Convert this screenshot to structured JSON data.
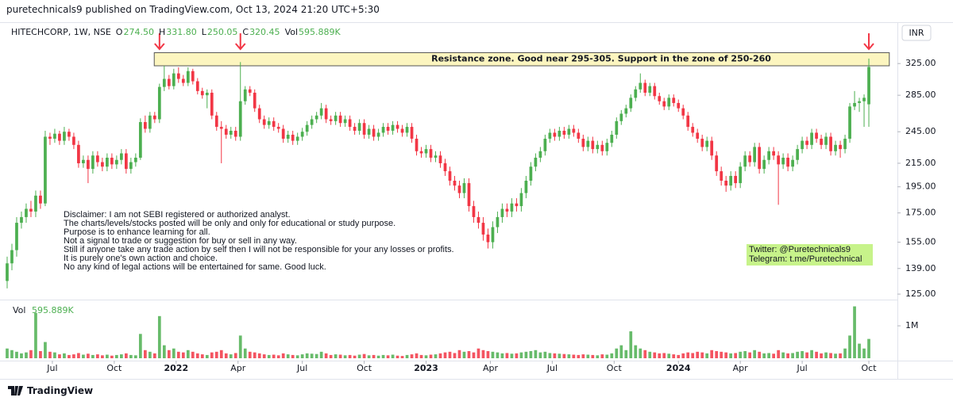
{
  "header": "puretechnicals9 published on TradingView.com, Oct 13, 2024 21:20 UTC+5:30",
  "footer": "TradingView",
  "chart_data": {
    "type": "candlestick",
    "title": "HITECHCORP, 1W, NSE",
    "ohlc_legend": [
      {
        "key": "O",
        "text": "274.50"
      },
      {
        "key": "H",
        "text": "331.80"
      },
      {
        "key": "L",
        "text": "250.05"
      },
      {
        "key": "C",
        "text": "320.45"
      }
    ],
    "currency": "INR",
    "log_scale": true,
    "up_color": "#4caf50",
    "down_color": "#f23645",
    "xlim": [
      -1.5,
      187
    ],
    "xticks": [
      {
        "value": 9.5,
        "label": "Jul"
      },
      {
        "value": 22.5,
        "label": "Oct"
      },
      {
        "value": 35.5,
        "label": "2022"
      },
      {
        "value": 48.5,
        "label": "Apr"
      },
      {
        "value": 62,
        "label": "Jul"
      },
      {
        "value": 75,
        "label": "Oct"
      },
      {
        "value": 88,
        "label": "2023"
      },
      {
        "value": 101.5,
        "label": "Apr"
      },
      {
        "value": 114.5,
        "label": "Jul"
      },
      {
        "value": 127.5,
        "label": "Oct"
      },
      {
        "value": 141,
        "label": "2024"
      },
      {
        "value": 154,
        "label": "Apr"
      },
      {
        "value": 167,
        "label": "Jul"
      },
      {
        "value": 181,
        "label": "Oct"
      }
    ],
    "ylim": [
      123,
      377
    ],
    "yticks": [
      {
        "value": 125,
        "label": "125.00"
      },
      {
        "value": 139,
        "label": "139.00"
      },
      {
        "value": 155,
        "label": "155.00"
      },
      {
        "value": 175,
        "label": "175.00"
      },
      {
        "value": 195,
        "label": "195.00"
      },
      {
        "value": 215,
        "label": "215.00"
      },
      {
        "value": 245,
        "label": "245.00"
      },
      {
        "value": 285,
        "label": "285.00"
      },
      {
        "value": 325,
        "label": "325.00"
      }
    ],
    "candles": [
      [
        132,
        146,
        128,
        142
      ],
      [
        142,
        154,
        138,
        150
      ],
      [
        150,
        172,
        146,
        168
      ],
      [
        168,
        176,
        164,
        172
      ],
      [
        172,
        182,
        168,
        178
      ],
      [
        178,
        184,
        172,
        176
      ],
      [
        176,
        192,
        172,
        188
      ],
      [
        188,
        192,
        178,
        182
      ],
      [
        182,
        246,
        180,
        240
      ],
      [
        240,
        244,
        232,
        238
      ],
      [
        238,
        248,
        234,
        243
      ],
      [
        243,
        246,
        232,
        236
      ],
      [
        236,
        250,
        232,
        245
      ],
      [
        245,
        248,
        236,
        240
      ],
      [
        240,
        244,
        228,
        232
      ],
      [
        232,
        236,
        211,
        215
      ],
      [
        215,
        222,
        211,
        218
      ],
      [
        218,
        222,
        198,
        210
      ],
      [
        210,
        226,
        206,
        222
      ],
      [
        222,
        226,
        212,
        216
      ],
      [
        216,
        220,
        208,
        212
      ],
      [
        212,
        224,
        208,
        220
      ],
      [
        220,
        224,
        210,
        214
      ],
      [
        214,
        222,
        210,
        218
      ],
      [
        218,
        228,
        214,
        224
      ],
      [
        224,
        228,
        206,
        210
      ],
      [
        210,
        220,
        206,
        216
      ],
      [
        216,
        224,
        212,
        220
      ],
      [
        220,
        259,
        218,
        255
      ],
      [
        255,
        262,
        244,
        248
      ],
      [
        248,
        266,
        244,
        262
      ],
      [
        262,
        266,
        254,
        258
      ],
      [
        258,
        299,
        254,
        295
      ],
      [
        295,
        322,
        290,
        305
      ],
      [
        305,
        310,
        292,
        296
      ],
      [
        296,
        318,
        292,
        312
      ],
      [
        312,
        320,
        300,
        305
      ],
      [
        305,
        310,
        296,
        300
      ],
      [
        300,
        320,
        296,
        315
      ],
      [
        315,
        318,
        298,
        302
      ],
      [
        302,
        306,
        286,
        290
      ],
      [
        290,
        294,
        281,
        285
      ],
      [
        285,
        292,
        270,
        288
      ],
      [
        288,
        292,
        258,
        262
      ],
      [
        262,
        266,
        246,
        250
      ],
      [
        250,
        256,
        215,
        248
      ],
      [
        248,
        252,
        238,
        242
      ],
      [
        242,
        250,
        238,
        246
      ],
      [
        246,
        250,
        236,
        240
      ],
      [
        240,
        327,
        236,
        278
      ],
      [
        278,
        296,
        274,
        292
      ],
      [
        292,
        296,
        284,
        288
      ],
      [
        288,
        292,
        266,
        270
      ],
      [
        270,
        274,
        254,
        258
      ],
      [
        258,
        262,
        248,
        252
      ],
      [
        252,
        260,
        248,
        256
      ],
      [
        256,
        260,
        246,
        250
      ],
      [
        250,
        254,
        244,
        248
      ],
      [
        248,
        252,
        234,
        238
      ],
      [
        238,
        246,
        234,
        242
      ],
      [
        242,
        246,
        232,
        236
      ],
      [
        236,
        244,
        232,
        240
      ],
      [
        240,
        249,
        236,
        245
      ],
      [
        245,
        256,
        241,
        252
      ],
      [
        252,
        262,
        248,
        258
      ],
      [
        258,
        266,
        254,
        262
      ],
      [
        262,
        276,
        258,
        270
      ],
      [
        270,
        274,
        254,
        258
      ],
      [
        258,
        262,
        252,
        256
      ],
      [
        256,
        266,
        252,
        262
      ],
      [
        262,
        266,
        250,
        254
      ],
      [
        254,
        262,
        250,
        258
      ],
      [
        258,
        262,
        246,
        250
      ],
      [
        250,
        254,
        242,
        246
      ],
      [
        246,
        258,
        242,
        254
      ],
      [
        254,
        258,
        238,
        242
      ],
      [
        242,
        252,
        238,
        248
      ],
      [
        248,
        252,
        236,
        240
      ],
      [
        240,
        248,
        236,
        244
      ],
      [
        244,
        254,
        240,
        250
      ],
      [
        250,
        254,
        242,
        246
      ],
      [
        246,
        256,
        242,
        252
      ],
      [
        252,
        256,
        244,
        248
      ],
      [
        248,
        252,
        240,
        244
      ],
      [
        244,
        254,
        240,
        250
      ],
      [
        250,
        254,
        234,
        238
      ],
      [
        238,
        242,
        222,
        226
      ],
      [
        226,
        230,
        220,
        224
      ],
      [
        224,
        232,
        220,
        228
      ],
      [
        228,
        232,
        216,
        220
      ],
      [
        220,
        226,
        216,
        222
      ],
      [
        222,
        226,
        211,
        215
      ],
      [
        215,
        219,
        204,
        208
      ],
      [
        208,
        212,
        196,
        200
      ],
      [
        200,
        204,
        192,
        196
      ],
      [
        196,
        200,
        186,
        190
      ],
      [
        190,
        202,
        186,
        198
      ],
      [
        198,
        202,
        176,
        180
      ],
      [
        180,
        184,
        168,
        172
      ],
      [
        172,
        176,
        164,
        168
      ],
      [
        168,
        172,
        156,
        160
      ],
      [
        160,
        164,
        151,
        155
      ],
      [
        155,
        169,
        151,
        165
      ],
      [
        165,
        176,
        161,
        172
      ],
      [
        172,
        182,
        168,
        178
      ],
      [
        178,
        182,
        172,
        176
      ],
      [
        176,
        186,
        172,
        182
      ],
      [
        182,
        186,
        176,
        180
      ],
      [
        180,
        194,
        176,
        190
      ],
      [
        190,
        204,
        186,
        200
      ],
      [
        200,
        216,
        196,
        212
      ],
      [
        212,
        224,
        208,
        220
      ],
      [
        220,
        230,
        216,
        226
      ],
      [
        226,
        242,
        222,
        238
      ],
      [
        238,
        248,
        234,
        244
      ],
      [
        244,
        248,
        236,
        240
      ],
      [
        240,
        250,
        236,
        246
      ],
      [
        246,
        250,
        238,
        242
      ],
      [
        242,
        252,
        238,
        248
      ],
      [
        248,
        252,
        240,
        244
      ],
      [
        244,
        248,
        234,
        238
      ],
      [
        238,
        242,
        226,
        230
      ],
      [
        230,
        240,
        226,
        236
      ],
      [
        236,
        240,
        224,
        228
      ],
      [
        228,
        236,
        224,
        232
      ],
      [
        232,
        236,
        222,
        226
      ],
      [
        226,
        238,
        222,
        234
      ],
      [
        234,
        246,
        230,
        242
      ],
      [
        242,
        260,
        238,
        256
      ],
      [
        256,
        268,
        252,
        264
      ],
      [
        264,
        274,
        260,
        270
      ],
      [
        270,
        286,
        266,
        282
      ],
      [
        282,
        296,
        278,
        292
      ],
      [
        292,
        312,
        288,
        300
      ],
      [
        300,
        304,
        284,
        288
      ],
      [
        288,
        300,
        284,
        296
      ],
      [
        296,
        300,
        280,
        284
      ],
      [
        284,
        288,
        274,
        278
      ],
      [
        278,
        282,
        268,
        272
      ],
      [
        272,
        286,
        268,
        282
      ],
      [
        282,
        286,
        272,
        276
      ],
      [
        276,
        280,
        266,
        270
      ],
      [
        270,
        274,
        258,
        262
      ],
      [
        262,
        266,
        246,
        250
      ],
      [
        250,
        254,
        240,
        244
      ],
      [
        244,
        248,
        234,
        238
      ],
      [
        238,
        242,
        226,
        230
      ],
      [
        230,
        240,
        226,
        236
      ],
      [
        236,
        240,
        218,
        222
      ],
      [
        222,
        226,
        204,
        208
      ],
      [
        208,
        212,
        196,
        200
      ],
      [
        200,
        204,
        191,
        196
      ],
      [
        196,
        208,
        192,
        204
      ],
      [
        204,
        208,
        194,
        198
      ],
      [
        198,
        216,
        194,
        212
      ],
      [
        212,
        226,
        208,
        222
      ],
      [
        222,
        226,
        212,
        216
      ],
      [
        216,
        234,
        212,
        230
      ],
      [
        230,
        234,
        206,
        210
      ],
      [
        210,
        222,
        206,
        218
      ],
      [
        218,
        230,
        214,
        226
      ],
      [
        226,
        230,
        218,
        222
      ],
      [
        222,
        226,
        181,
        214
      ],
      [
        214,
        224,
        210,
        220
      ],
      [
        220,
        224,
        208,
        212
      ],
      [
        212,
        222,
        208,
        218
      ],
      [
        218,
        232,
        214,
        228
      ],
      [
        228,
        240,
        224,
        236
      ],
      [
        236,
        240,
        228,
        232
      ],
      [
        232,
        248,
        228,
        244
      ],
      [
        244,
        248,
        234,
        238
      ],
      [
        238,
        242,
        228,
        232
      ],
      [
        232,
        244,
        228,
        240
      ],
      [
        240,
        244,
        222,
        226
      ],
      [
        226,
        236,
        222,
        232
      ],
      [
        232,
        236,
        220,
        228
      ],
      [
        228,
        242,
        224,
        238
      ],
      [
        238,
        276,
        234,
        272
      ],
      [
        272,
        290,
        268,
        276
      ],
      [
        276,
        282,
        266,
        278
      ],
      [
        278,
        286,
        250,
        282
      ],
      [
        274.5,
        331.8,
        250.05,
        320.45
      ]
    ],
    "volume": {
      "name": "Vol",
      "value_label": "595.889K",
      "ylim": [
        0,
        1760000
      ],
      "yticks": [
        {
          "value": 1000000,
          "label": "1M"
        }
      ],
      "values": [
        300000,
        250000,
        200000,
        150000,
        180000,
        250000,
        1400000,
        220000,
        500000,
        200000,
        180000,
        120000,
        150000,
        100000,
        120000,
        160000,
        110000,
        140000,
        100000,
        120000,
        90000,
        110000,
        80000,
        100000,
        120000,
        150000,
        100000,
        90000,
        750000,
        250000,
        200000,
        150000,
        1300000,
        400000,
        250000,
        300000,
        200000,
        180000,
        250000,
        200000,
        150000,
        120000,
        100000,
        180000,
        200000,
        250000,
        150000,
        120000,
        160000,
        700000,
        300000,
        200000,
        180000,
        150000,
        120000,
        100000,
        110000,
        90000,
        150000,
        120000,
        100000,
        90000,
        120000,
        150000,
        140000,
        130000,
        200000,
        150000,
        100000,
        120000,
        110000,
        90000,
        100000,
        80000,
        110000,
        130000,
        90000,
        100000,
        80000,
        100000,
        90000,
        110000,
        80000,
        70000,
        100000,
        120000,
        150000,
        100000,
        90000,
        110000,
        120000,
        150000,
        180000,
        200000,
        160000,
        250000,
        200000,
        220000,
        180000,
        300000,
        250000,
        220000,
        200000,
        180000,
        150000,
        160000,
        140000,
        150000,
        180000,
        200000,
        220000,
        250000,
        180000,
        200000,
        160000,
        150000,
        140000,
        130000,
        120000,
        110000,
        100000,
        120000,
        110000,
        100000,
        90000,
        120000,
        110000,
        150000,
        300000,
        400000,
        250000,
        830000,
        400000,
        300000,
        250000,
        200000,
        180000,
        150000,
        160000,
        140000,
        120000,
        100000,
        150000,
        180000,
        160000,
        200000,
        180000,
        150000,
        250000,
        220000,
        200000,
        180000,
        150000,
        160000,
        200000,
        220000,
        180000,
        250000,
        200000,
        150000,
        160000,
        140000,
        250000,
        180000,
        150000,
        160000,
        200000,
        220000,
        180000,
        250000,
        200000,
        150000,
        180000,
        160000,
        140000,
        150000,
        300000,
        700000,
        1600000,
        450000,
        300000,
        595889
      ]
    },
    "annotations": {
      "zone": {
        "text": "Resistance zone. Good near 295-305. Support in the zone of 250-260",
        "x": [
          30.9,
          185.3
        ],
        "y": [
          322,
          340
        ]
      },
      "arrows": [
        32,
        49,
        181
      ],
      "disclaimer": [
        "Disclaimer: I am not SEBI registered or authorized analyst.",
        "The charts/levels/stocks posted will be only and only for educational or study purpose.",
        "Purpose is to enhance learning for all.",
        "Not a signal to trade or suggestion for buy or sell in any way.",
        "Still if anyone take any trade action by self then I will not be responsible for your any losses or profits.",
        "It is purely one's own action and choice.",
        "No any kind of legal actions will be entertained for same. Good luck."
      ],
      "contact": [
        "Twitter: @Puretechnicals9",
        "Telegram: t.me/Puretechnical"
      ]
    }
  }
}
